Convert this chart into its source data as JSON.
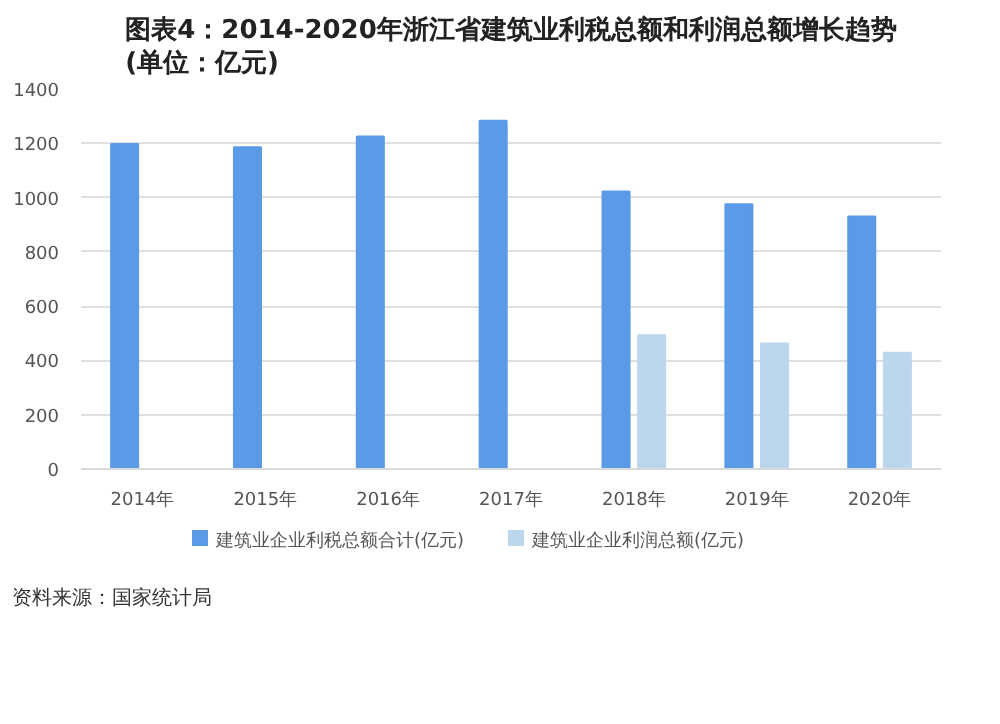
{
  "chart_data": {
    "type": "bar",
    "title": "图表4：2014-2020年浙江省建筑业利税总额和利润总额增长趋势(单位：亿元)",
    "categories": [
      "2014年",
      "2015年",
      "2016年",
      "2017年",
      "2018年",
      "2019年",
      "2020年"
    ],
    "series": [
      {
        "name": "建筑业企业利税总额合计(亿元)",
        "color": "#5b9ae6",
        "values": [
          1197,
          1185,
          1225,
          1283,
          1022,
          975,
          930
        ]
      },
      {
        "name": "建筑业企业利润总额(亿元)",
        "color": "#bcd6ee",
        "values": [
          null,
          null,
          null,
          null,
          493,
          462,
          428
        ]
      }
    ],
    "ylim": [
      0,
      1400
    ],
    "yticks": [
      0,
      200,
      400,
      600,
      800,
      1000,
      1200,
      1400
    ],
    "grid": "y",
    "legend": "bottom",
    "annotations": [
      "资料来源：国家统计局"
    ]
  }
}
